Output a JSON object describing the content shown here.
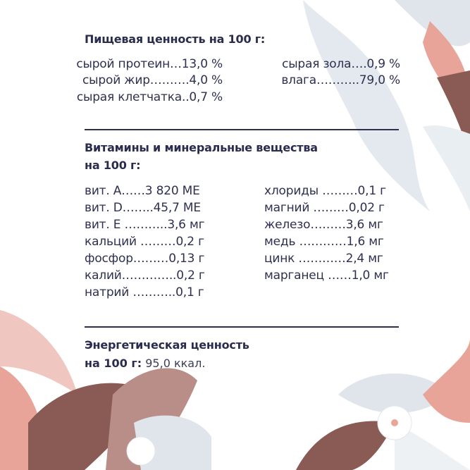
{
  "nutrition": {
    "title": "Пищевая ценность на 100 г:",
    "left": [
      "сырой протеин…13,0 %",
      "сырой жир……….4,0 %",
      "сырая клетчатка..0,7 %"
    ],
    "right": [
      "сырая зола….0,9 %",
      "влага………..79,0 %"
    ]
  },
  "vitamins": {
    "title_line1": "Витамины и минеральные вещества",
    "title_line2": "на 100 г:",
    "left": [
      "вит. A……3 820 МЕ",
      "вит. D……..45,7 МЕ",
      "вит. E ………..3,6 мг",
      "кальций ………0,2 г",
      "фосфор………0,13 г",
      "калий…………..0,2 г",
      "натрий ………..0,1 г"
    ],
    "right": [
      "хлориды ………0,1 г",
      "магний ………0,02 г",
      "железо………3,6 мг",
      "медь …………1,6 мг",
      "цинк …………2,4 мг",
      "марганец ……1,0 мг"
    ]
  },
  "energy": {
    "title_line1": "Энергетическая ценность",
    "label": "на 100 г:",
    "value": "95,0 ккал."
  },
  "colors": {
    "text": "#2e3050",
    "leaf_pink": "#e9a79e",
    "leaf_brown": "#8a5a55",
    "leaf_grey": "#dfe5ea"
  }
}
